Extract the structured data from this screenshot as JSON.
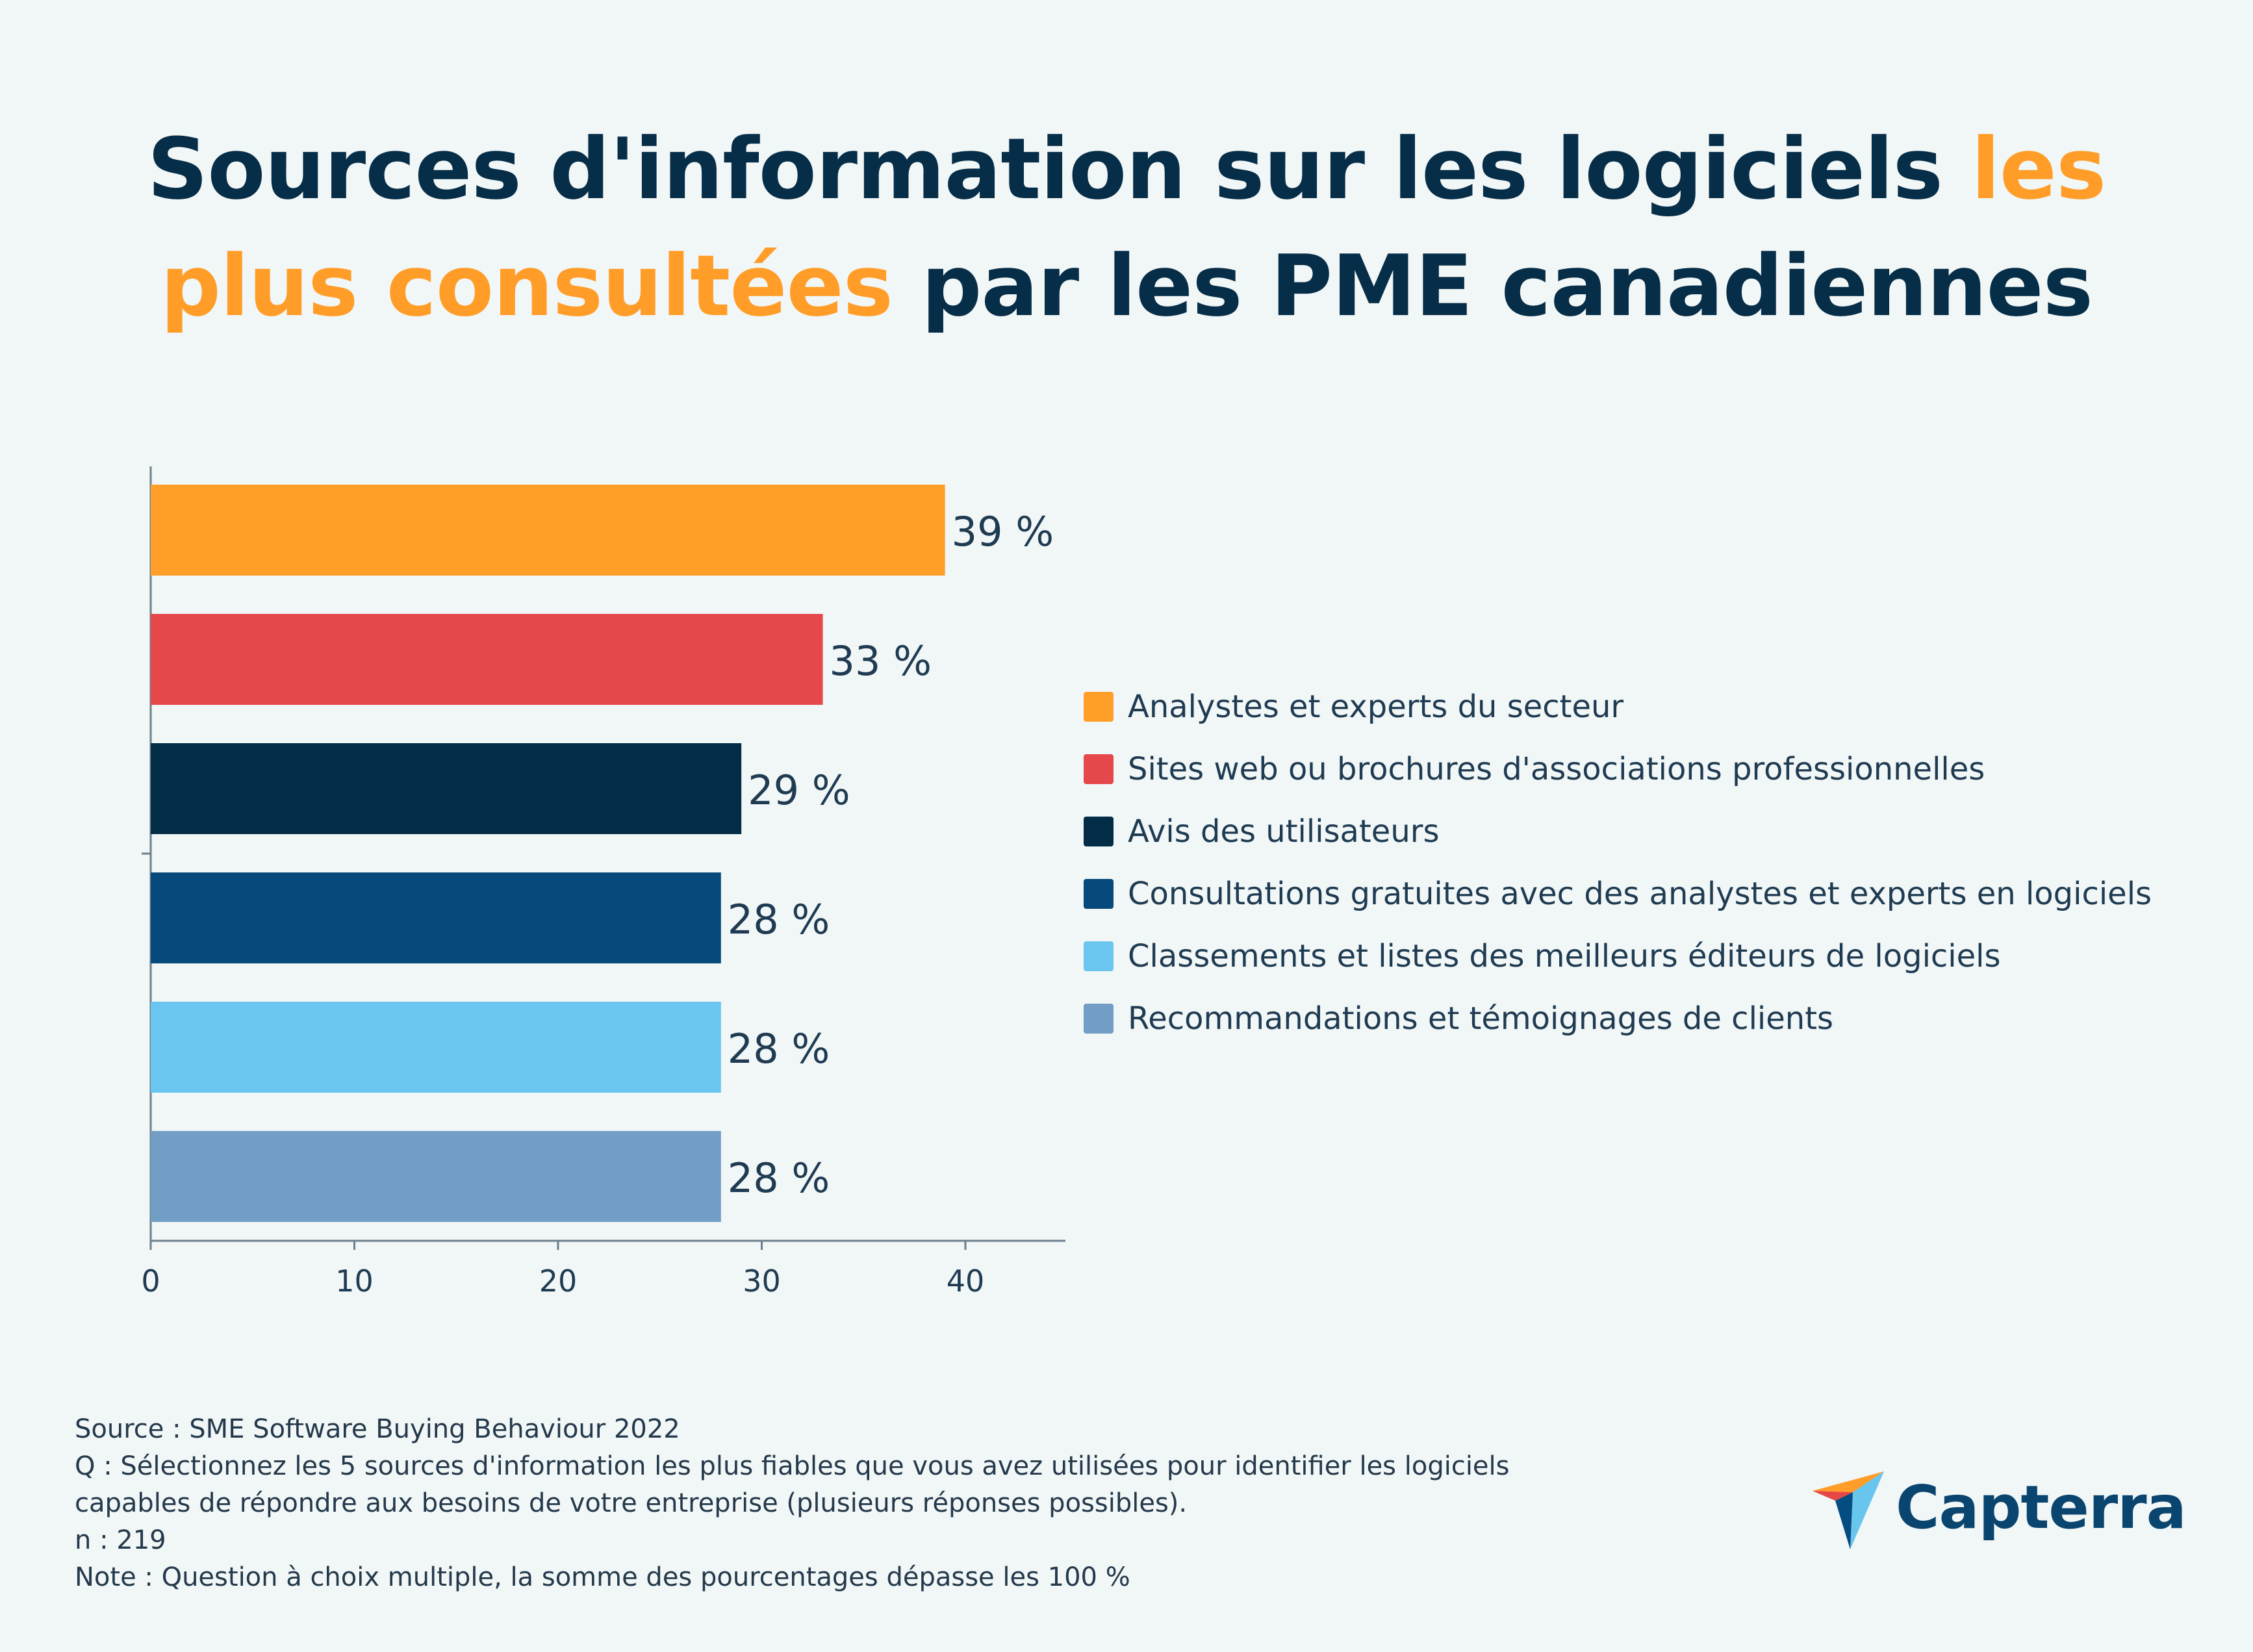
{
  "title": {
    "part1": "Sources d'information sur les logiciels ",
    "highlight_a": "les",
    "highlight_b": "plus consultées",
    "part2": " par les PME canadiennes"
  },
  "colors": {
    "title": "#072e48",
    "highlight": "#ff9d28",
    "axis": "#6b7f8c",
    "label": "#1f3b52"
  },
  "chart_data": {
    "type": "bar",
    "orientation": "horizontal",
    "categories": [
      "Analystes et experts du secteur",
      "Sites web ou brochures d'associations professionnelles",
      "Avis des utilisateurs",
      "Consultations gratuites avec des analystes et experts en logiciels",
      "Classements et listes des meilleurs éditeurs de logiciels",
      "Recommandations et témoignages de clients"
    ],
    "values": [
      39,
      33,
      29,
      28,
      28,
      28
    ],
    "value_labels": [
      "39 %",
      "33 %",
      "29 %",
      "28 %",
      "28 %",
      "28 %"
    ],
    "bar_colors": [
      "#ff9f2a",
      "#e5474a",
      "#032d47",
      "#06497a",
      "#6ac6ee",
      "#729dc4"
    ],
    "xlim": [
      0,
      45
    ],
    "xticks": [
      0,
      10,
      20,
      30,
      40
    ],
    "xtick_labels": [
      "0",
      "10",
      "20",
      "30",
      "40"
    ],
    "legend_position": "right",
    "grid": false,
    "xlabel": "",
    "ylabel": ""
  },
  "footnotes": {
    "source": "Source : SME Software Buying Behaviour 2022",
    "question_line1": "Q : Sélectionnez les 5 sources d'information les plus fiables que vous avez utilisées pour identifier les logiciels",
    "question_line2": "capables de répondre aux besoins de votre entreprise (plusieurs réponses possibles).",
    "n": "n : 219",
    "note": "Note : Question à choix multiple, la somme des pourcentages dépasse les 100 %"
  },
  "logo": {
    "text": "Capterra",
    "icon": "capterra-arrow-icon"
  }
}
